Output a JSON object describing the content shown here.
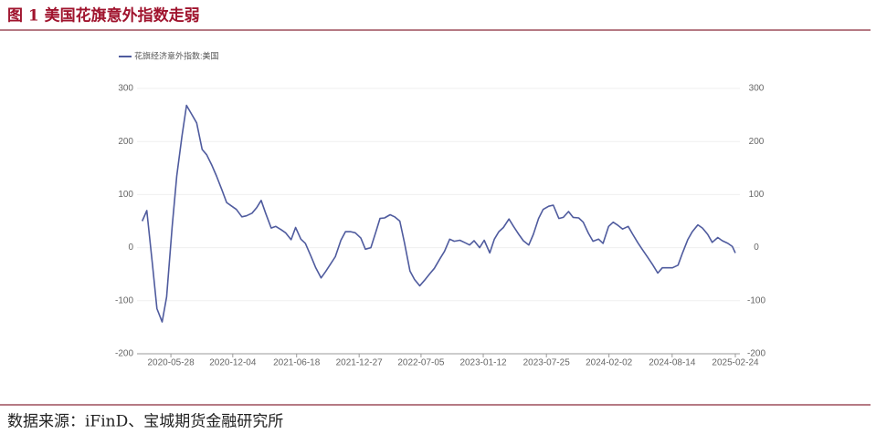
{
  "header": {
    "title": "图 1 美国花旗意外指数走弱"
  },
  "footer": {
    "source": "数据来源：iFinD、宝城期货金融研究所"
  },
  "chart_data": {
    "type": "line",
    "legend": "top-left",
    "grid": true,
    "x": [
      "2020-03-01",
      "2020-03-15",
      "2020-04-01",
      "2020-04-15",
      "2020-05-01",
      "2020-05-15",
      "2020-06-01",
      "2020-06-15",
      "2020-07-01",
      "2020-07-15",
      "2020-08-01",
      "2020-08-15",
      "2020-09-01",
      "2020-09-15",
      "2020-10-01",
      "2020-10-15",
      "2020-11-01",
      "2020-11-15",
      "2020-12-01",
      "2020-12-15",
      "2021-01-01",
      "2021-01-15",
      "2021-02-01",
      "2021-02-15",
      "2021-03-01",
      "2021-03-15",
      "2021-04-01",
      "2021-04-15",
      "2021-05-01",
      "2021-05-15",
      "2021-06-01",
      "2021-06-15",
      "2021-07-01",
      "2021-07-15",
      "2021-08-01",
      "2021-08-15",
      "2021-09-01",
      "2021-09-15",
      "2021-10-01",
      "2021-10-15",
      "2021-11-01",
      "2021-11-15",
      "2021-12-01",
      "2021-12-15",
      "2022-01-01",
      "2022-01-15",
      "2022-02-01",
      "2022-02-15",
      "2022-03-01",
      "2022-03-15",
      "2022-04-01",
      "2022-04-15",
      "2022-05-01",
      "2022-05-15",
      "2022-06-01",
      "2022-06-15",
      "2022-07-01",
      "2022-07-15",
      "2022-08-01",
      "2022-08-15",
      "2022-09-01",
      "2022-09-15",
      "2022-10-01",
      "2022-10-15",
      "2022-11-01",
      "2022-11-15",
      "2022-12-01",
      "2022-12-15",
      "2023-01-01",
      "2023-01-15",
      "2023-02-01",
      "2023-02-15",
      "2023-03-01",
      "2023-03-15",
      "2023-04-01",
      "2023-04-15",
      "2023-05-01",
      "2023-05-15",
      "2023-06-01",
      "2023-06-15",
      "2023-07-01",
      "2023-07-15",
      "2023-08-01",
      "2023-08-15",
      "2023-09-01",
      "2023-09-15",
      "2023-10-01",
      "2023-10-15",
      "2023-11-01",
      "2023-11-15",
      "2023-12-01",
      "2023-12-15",
      "2024-01-01",
      "2024-01-15",
      "2024-02-01",
      "2024-02-15",
      "2024-03-01",
      "2024-03-15",
      "2024-04-01",
      "2024-04-15",
      "2024-05-01",
      "2024-05-15",
      "2024-06-01",
      "2024-06-15",
      "2024-07-01",
      "2024-07-15",
      "2024-08-01",
      "2024-08-15",
      "2024-09-01",
      "2024-09-15",
      "2024-10-01",
      "2024-10-15",
      "2024-11-01",
      "2024-11-15",
      "2024-12-01",
      "2024-12-15",
      "2025-01-01",
      "2025-01-15",
      "2025-02-01",
      "2025-02-15",
      "2025-02-24"
    ],
    "series": [
      {
        "name": "花旗经济意外指数:美国",
        "color": "#4f5b9e",
        "values": [
          50,
          70,
          -30,
          -115,
          -140,
          -93,
          40,
          135,
          210,
          268,
          250,
          235,
          185,
          175,
          155,
          135,
          108,
          85,
          78,
          72,
          58,
          60,
          65,
          75,
          89,
          65,
          37,
          40,
          34,
          28,
          15,
          38,
          16,
          8,
          -16,
          -37,
          -57,
          -45,
          -30,
          -17,
          14,
          30,
          30,
          28,
          18,
          -3,
          0,
          27,
          55,
          56,
          62,
          58,
          50,
          10,
          -44,
          -60,
          -72,
          -62,
          -49,
          -39,
          -21,
          -7,
          16,
          12,
          14,
          10,
          5,
          13,
          0,
          14,
          -10,
          16,
          30,
          38,
          54,
          40,
          25,
          13,
          5,
          25,
          55,
          72,
          78,
          80,
          55,
          57,
          68,
          57,
          56,
          48,
          27,
          12,
          16,
          8,
          40,
          48,
          42,
          35,
          40,
          25,
          9,
          -4,
          -19,
          -32,
          -48,
          -38,
          -38,
          -38,
          -33,
          -10,
          15,
          30,
          43,
          37,
          25,
          10,
          19,
          13,
          8,
          2,
          -10
        ]
      }
    ],
    "xlim": [
      "2020-02-14",
      "2025-03-10"
    ],
    "xticks": [
      "2020-05-28",
      "2020-12-04",
      "2021-06-18",
      "2021-12-27",
      "2022-07-05",
      "2023-01-12",
      "2023-07-25",
      "2024-02-02",
      "2024-08-14",
      "2025-02-24"
    ],
    "ylim": [
      -200,
      300
    ],
    "yticks": [
      -200,
      -100,
      0,
      100,
      200,
      300
    ],
    "y2lim": [
      -200,
      300
    ],
    "y2ticks": [
      -200,
      -100,
      0,
      100,
      200,
      300
    ]
  }
}
